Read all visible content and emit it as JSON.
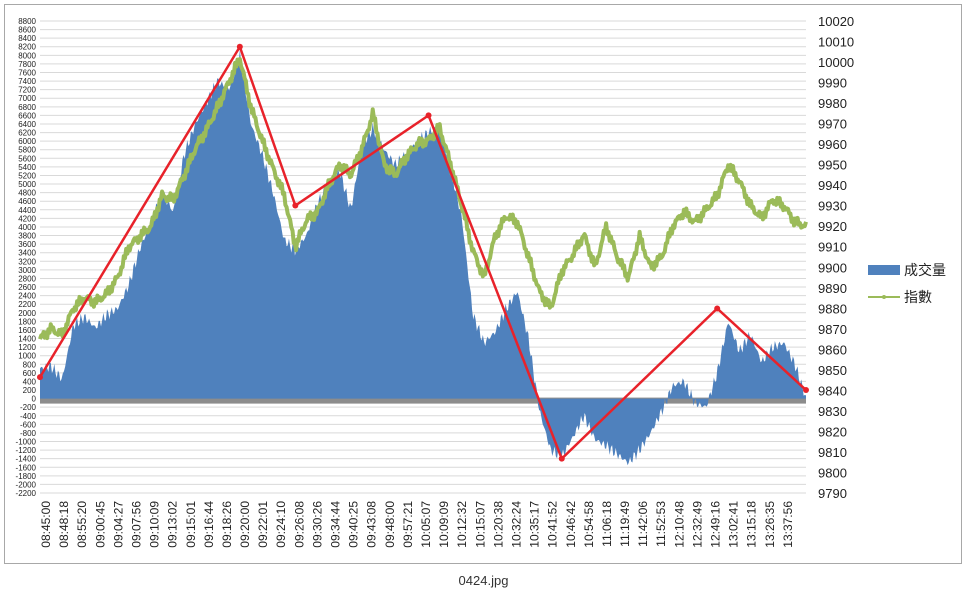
{
  "caption": "0424.jpg",
  "chart_data": {
    "type": "area+line",
    "title": "",
    "xlabel": "",
    "ylabel": "",
    "left_axis": {
      "ylim": [
        -2200,
        8800
      ],
      "ticks": [
        8800,
        8600,
        8400,
        8200,
        8000,
        7800,
        7600,
        7400,
        7200,
        7000,
        6800,
        6600,
        6400,
        6200,
        6000,
        5800,
        5600,
        5400,
        5200,
        5000,
        4800,
        4600,
        4400,
        4200,
        4000,
        3800,
        3600,
        3400,
        3200,
        3000,
        2800,
        2600,
        2400,
        2200,
        2000,
        1800,
        1600,
        1400,
        1200,
        1000,
        800,
        600,
        400,
        200,
        0,
        -200,
        -400,
        -600,
        -800,
        -1000,
        -1200,
        -1400,
        -1600,
        -1800,
        -2000,
        -2200
      ]
    },
    "right_axis": {
      "ylim": [
        9790,
        10020
      ],
      "ticks": [
        10020,
        10010,
        10000,
        9990,
        9980,
        9970,
        9960,
        9950,
        9940,
        9930,
        9920,
        9910,
        9900,
        9890,
        9880,
        9870,
        9860,
        9850,
        9840,
        9830,
        9820,
        9810,
        9800,
        9790
      ]
    },
    "x_tick_labels": [
      "08:45:00",
      "08:48:18",
      "08:55:20",
      "09:00:45",
      "09:04:27",
      "09:07:56",
      "09:10:09",
      "09:13:02",
      "09:15:01",
      "09:16:44",
      "09:18:26",
      "09:20:00",
      "09:22:01",
      "09:24:10",
      "09:26:08",
      "09:30:26",
      "09:34:44",
      "09:40:25",
      "09:43:08",
      "09:48:00",
      "09:57:21",
      "10:05:07",
      "10:09:09",
      "10:12:32",
      "10:15:07",
      "10:20:38",
      "10:32:24",
      "10:35:17",
      "10:41:52",
      "10:46:42",
      "10:54:58",
      "11:06:18",
      "11:19:49",
      "11:42:06",
      "11:52:53",
      "12:10:48",
      "12:32:49",
      "12:49:16",
      "13:02:41",
      "13:15:18",
      "13:26:35",
      "13:37:56"
    ],
    "legend_position": "right",
    "grid": true,
    "series": [
      {
        "name": "成交量",
        "axis": "left",
        "style": "area",
        "color": "#4f81bd",
        "values": [
          700,
          750,
          450,
          1700,
          1900,
          1650,
          1950,
          2100,
          2650,
          3500,
          4100,
          4800,
          4350,
          5700,
          6400,
          6900,
          7400,
          7200,
          8000,
          6400,
          5700,
          4800,
          3700,
          3450,
          3800,
          4550,
          5000,
          5300,
          4400,
          5900,
          6300,
          5800,
          5450,
          5700,
          6000,
          6200,
          6350,
          5350,
          4200,
          1950,
          1300,
          1550,
          2100,
          2500,
          1400,
          -300,
          -1200,
          -1350,
          -900,
          -400,
          -950,
          -1100,
          -1300,
          -1500,
          -1200,
          -800,
          -300,
          300,
          400,
          -100,
          -200,
          600,
          1800,
          1100,
          1500,
          850,
          1200,
          1300,
          800,
          0
        ]
      },
      {
        "name": "指數",
        "axis": "right",
        "style": "line",
        "color": "#9bbb59",
        "values": [
          9865,
          9870,
          9867,
          9880,
          9885,
          9883,
          9887,
          9895,
          9910,
          9915,
          9920,
          9935,
          9933,
          9945,
          9958,
          9967,
          9978,
          9990,
          10002,
          9978,
          9962,
          9948,
          9935,
          9910,
          9923,
          9927,
          9940,
          9950,
          9945,
          9958,
          9975,
          9950,
          9945,
          9954,
          9960,
          9962,
          9968,
          9950,
          9930,
          9908,
          9895,
          9915,
          9925,
          9922,
          9905,
          9888,
          9880,
          9898,
          9906,
          9916,
          9900,
          9920,
          9905,
          9895,
          9915,
          9900,
          9905,
          9920,
          9927,
          9922,
          9928,
          9935,
          9950,
          9942,
          9930,
          9924,
          9933,
          9930,
          9922,
          9920
        ]
      }
    ],
    "annotation_lines": {
      "color": "#e8222a",
      "points": [
        {
          "x_index": 0,
          "y": 500
        },
        {
          "x_index": 18,
          "y": 8200
        },
        {
          "x_index": 23,
          "y": 4500
        },
        {
          "x_index": 35,
          "y": 6600
        },
        {
          "x_index": 47,
          "y": -1400
        },
        {
          "x_index": 61,
          "y": 2100
        },
        {
          "x_index": 69,
          "y": 200
        }
      ]
    }
  }
}
